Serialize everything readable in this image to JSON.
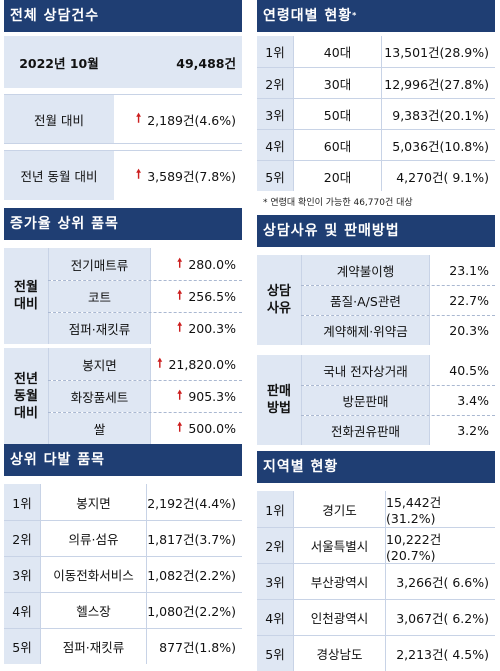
{
  "total": {
    "title": "전체 상담건수",
    "period_label": "2022년 10월",
    "period_value": "49,488건",
    "rows": [
      {
        "label": "전월 대비",
        "value": "2,189건(4.6%)"
      },
      {
        "label": "전년 동월 대비",
        "value": "3,589건(7.8%)"
      }
    ]
  },
  "age": {
    "title": "연령대별 현황",
    "title_mark": "*",
    "rows": [
      {
        "rank": "1위",
        "group": "40대",
        "value": "13,501건(28.9%)"
      },
      {
        "rank": "2위",
        "group": "30대",
        "value": "12,996건(27.8%)"
      },
      {
        "rank": "3위",
        "group": "50대",
        "value": "9,383건(20.1%)"
      },
      {
        "rank": "4위",
        "group": "60대",
        "value": "5,036건(10.8%)"
      },
      {
        "rank": "5위",
        "group": "20대",
        "value": "4,270건( 9.1%)"
      }
    ],
    "note": "* 연령대 확인이 가능한 46,770건 대상"
  },
  "increase": {
    "title": "증가율 상위 품목",
    "groups": [
      {
        "label_line1": "전월",
        "label_line2": "대비",
        "label_line3": "",
        "items": [
          {
            "name": "전기매트류",
            "value": "280.0%"
          },
          {
            "name": "코트",
            "value": "256.5%"
          },
          {
            "name": "점퍼·재킷류",
            "value": "200.3%"
          }
        ]
      },
      {
        "label_line1": "전년",
        "label_line2": "동월",
        "label_line3": "대비",
        "items": [
          {
            "name": "봉지면",
            "value": "21,820.0%"
          },
          {
            "name": "화장품세트",
            "value": "905.3%"
          },
          {
            "name": "쌀",
            "value": "500.0%"
          }
        ]
      }
    ]
  },
  "reason": {
    "title": "상담사유 및 판매방법",
    "groups": [
      {
        "label_line1": "상담",
        "label_line2": "사유",
        "items": [
          {
            "name": "계약불이행",
            "value": "23.1%"
          },
          {
            "name": "품질·A/S관련",
            "value": "22.7%"
          },
          {
            "name": "계약해제·위약금",
            "value": "20.3%"
          }
        ]
      },
      {
        "label_line1": "판매",
        "label_line2": "방법",
        "items": [
          {
            "name": "국내 전자상거래",
            "value": "40.5%"
          },
          {
            "name": "방문판매",
            "value": "3.4%"
          },
          {
            "name": "전화권유판매",
            "value": "3.2%"
          }
        ]
      }
    ]
  },
  "top_items": {
    "title": "상위 다발 품목",
    "rows": [
      {
        "rank": "1위",
        "name": "봉지면",
        "value": "2,192건(4.4%)"
      },
      {
        "rank": "2위",
        "name": "의류·섬유",
        "value": "1,817건(3.7%)"
      },
      {
        "rank": "3위",
        "name": "이동전화서비스",
        "value": "1,082건(2.2%)"
      },
      {
        "rank": "4위",
        "name": "헬스장",
        "value": "1,080건(2.2%)"
      },
      {
        "rank": "5위",
        "name": "점퍼·재킷류",
        "value": "877건(1.8%)"
      }
    ]
  },
  "region": {
    "title": "지역별 현황",
    "rows": [
      {
        "rank": "1위",
        "name": "경기도",
        "value": "15,442건(31.2%)"
      },
      {
        "rank": "2위",
        "name": "서울특별시",
        "value": "10,222건(20.7%)"
      },
      {
        "rank": "3위",
        "name": "부산광역시",
        "value": "3,266건( 6.6%)"
      },
      {
        "rank": "4위",
        "name": "인천광역시",
        "value": "3,067건( 6.2%)"
      },
      {
        "rank": "5위",
        "name": "경상남도",
        "value": "2,213건( 4.5%)"
      }
    ]
  },
  "colors": {
    "header_bg": "#1f3e73",
    "shade": "#dfe7f3",
    "arrow": "#cc1f1f"
  },
  "icons": {
    "increase": "up-arrow-icon"
  }
}
